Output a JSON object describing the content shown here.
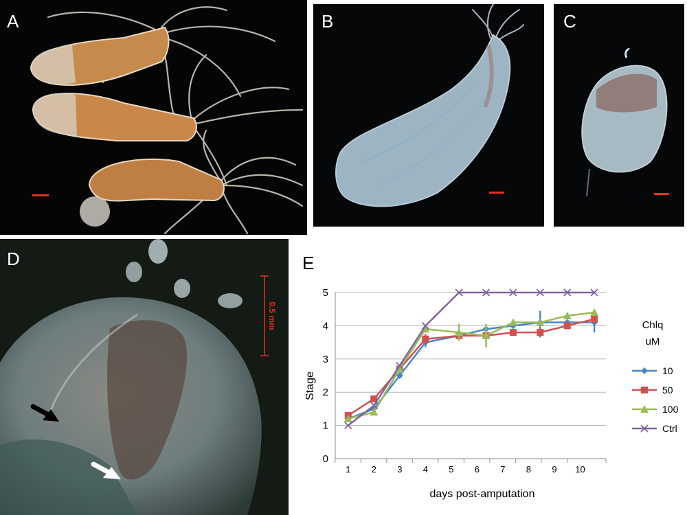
{
  "panels": {
    "a": {
      "label": "A"
    },
    "b": {
      "label": "B"
    },
    "c": {
      "label": "C"
    },
    "d": {
      "label": "D",
      "scale_label": "0.5 mm"
    },
    "e": {
      "label": "E"
    }
  },
  "colors": {
    "scale_bar": "#e8301b",
    "series_10": "#4a86c8",
    "series_50": "#d0504c",
    "series_100": "#9bbb59",
    "series_ctrl": "#8064a2"
  },
  "chart_data": {
    "type": "line",
    "xlabel": "days post-amputation",
    "ylabel": "Stage",
    "legend_title": [
      "Chlq",
      "uM"
    ],
    "legend_position": "right",
    "categories": [
      "1",
      "2",
      "3",
      "4",
      "5",
      "6",
      "7",
      "8",
      "9",
      "10"
    ],
    "yticks": [
      "0",
      "1",
      "2",
      "3",
      "4",
      "5"
    ],
    "ylim": [
      0,
      5
    ],
    "grid": true,
    "x_extent": [
      0.5,
      11
    ],
    "series": [
      {
        "name": "10",
        "color": "#4a86c8",
        "marker": "diamond",
        "x": [
          1,
          2,
          3,
          4,
          5,
          6,
          7,
          8,
          9,
          10
        ],
        "y": [
          1.2,
          1.5,
          2.5,
          3.5,
          3.7,
          3.9,
          4.0,
          4.1,
          4.1,
          4.1
        ],
        "err": [
          0,
          0,
          0,
          0.15,
          0,
          0,
          0,
          0.35,
          0,
          0.3
        ]
      },
      {
        "name": "50",
        "color": "#d0504c",
        "marker": "square",
        "x": [
          1,
          2,
          3,
          4,
          5,
          6,
          7,
          8,
          9,
          10
        ],
        "y": [
          1.3,
          1.8,
          2.7,
          3.6,
          3.7,
          3.7,
          3.8,
          3.8,
          4.0,
          4.2
        ],
        "err": [
          0,
          0,
          0,
          0.15,
          0.15,
          0,
          0,
          0.15,
          0,
          0
        ]
      },
      {
        "name": "100",
        "color": "#9bbb59",
        "marker": "triangle",
        "x": [
          1,
          2,
          3,
          4,
          5,
          6,
          7,
          8,
          9,
          10
        ],
        "y": [
          1.2,
          1.4,
          2.7,
          3.9,
          3.8,
          3.7,
          4.1,
          4.1,
          4.3,
          4.4
        ],
        "err": [
          0,
          0,
          0,
          0,
          0.25,
          0.35,
          0,
          0,
          0,
          0
        ]
      },
      {
        "name": "Ctrl",
        "color": "#8064a2",
        "marker": "x",
        "x": [
          1,
          2,
          3,
          4,
          5,
          6,
          7,
          8,
          9,
          10
        ],
        "y": [
          1.0,
          1.6,
          2.8,
          4.0,
          5.0,
          5.0,
          5.0,
          5.0,
          5.0,
          5.0
        ],
        "err": [
          0,
          0,
          0,
          0,
          0,
          0,
          0,
          0,
          0,
          0
        ]
      }
    ]
  }
}
